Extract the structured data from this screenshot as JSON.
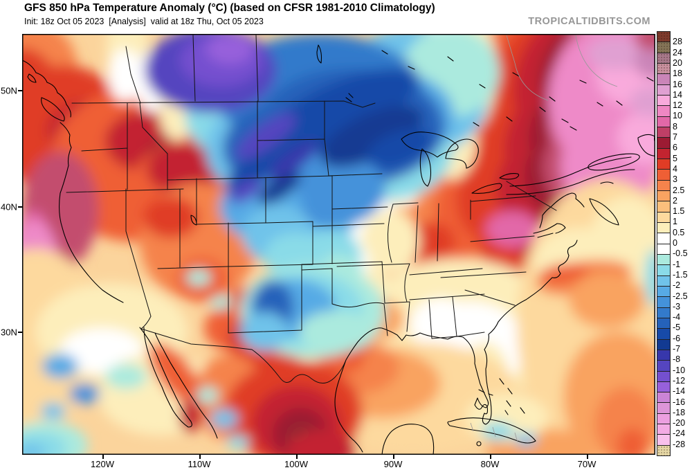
{
  "header": {
    "title": "GFS 850 hPa Temperature Anomaly (°C) (based on CFSR 1981-2010 Climatology)",
    "init_valid_line": "Init: 18z Oct 05 2023  [Analysis]  valid at 18z Thu, Oct 05 2023",
    "init": "18z Oct 05 2023",
    "mode": "[Analysis]",
    "valid": "18z Thu, Oct 05 2023",
    "watermark": "TROPICALTIDBITS.COM"
  },
  "axes": {
    "lat_labels": [
      "50N",
      "40N",
      "30N"
    ],
    "lon_labels": [
      "120W",
      "110W",
      "100W",
      "90W",
      "80W",
      "70W"
    ]
  },
  "colorbar": {
    "unit": "°C",
    "labels": [
      "28",
      "24",
      "20",
      "18",
      "16",
      "14",
      "12",
      "10",
      "8",
      "7",
      "6",
      "5",
      "4",
      "3",
      "2.5",
      "2",
      "1.5",
      "1",
      "0.5",
      "0",
      "-0.5",
      "-1",
      "-1.5",
      "-2",
      "-2.5",
      "-3",
      "-4",
      "-5",
      "-6",
      "-7",
      "-8",
      "-10",
      "-12",
      "-14",
      "-16",
      "-18",
      "-20",
      "-24",
      "-28"
    ],
    "cells": [
      {
        "range": "> 28",
        "color": "#7e3a2c",
        "speckle": true
      },
      {
        "range": "24 to 28",
        "color": "#857457",
        "speckle": true
      },
      {
        "range": "20 to 24",
        "color": "#a8798b",
        "speckle": true
      },
      {
        "range": "18 to 20",
        "color": "#c9919f",
        "speckle": true
      },
      {
        "range": "16 to 18",
        "color": "#ca85b8",
        "speckle": false
      },
      {
        "range": "14 to 16",
        "color": "#e0a0d2",
        "speckle": false
      },
      {
        "range": "12 to 14",
        "color": "#f9aadc",
        "speckle": false
      },
      {
        "range": "10 to 12",
        "color": "#ef87c3",
        "speckle": false
      },
      {
        "range": "8 to 10",
        "color": "#e268a8",
        "speckle": false
      },
      {
        "range": "7 to 8",
        "color": "#bf3f66",
        "speckle": false
      },
      {
        "range": "6 to 7",
        "color": "#9c1b33",
        "speckle": false
      },
      {
        "range": "5 to 6",
        "color": "#c32430",
        "speckle": false
      },
      {
        "range": "4 to 5",
        "color": "#e03c25",
        "speckle": false
      },
      {
        "range": "3 to 4",
        "color": "#ef5f35",
        "speckle": false
      },
      {
        "range": "2.5 to 3",
        "color": "#f5834c",
        "speckle": false
      },
      {
        "range": "2 to 2.5",
        "color": "#f9a361",
        "speckle": false
      },
      {
        "range": "1.5 to 2",
        "color": "#fbbf7c",
        "speckle": false
      },
      {
        "range": "1 to 1.5",
        "color": "#fdd99e",
        "speckle": false
      },
      {
        "range": "0.5 to 1",
        "color": "#fdeebb",
        "speckle": false
      },
      {
        "range": "0 to 0.5",
        "color": "#ffffff",
        "speckle": false
      },
      {
        "range": "-0.5 to 0",
        "color": "#ffffff",
        "speckle": false
      },
      {
        "range": "-1 to -0.5",
        "color": "#abeade",
        "speckle": false
      },
      {
        "range": "-1.5 to -1",
        "color": "#8adbe8",
        "speckle": false
      },
      {
        "range": "-2 to -1.5",
        "color": "#70c3ea",
        "speckle": false
      },
      {
        "range": "-2.5 to -2",
        "color": "#57aae5",
        "speckle": false
      },
      {
        "range": "-3 to -2.5",
        "color": "#4492da",
        "speckle": false
      },
      {
        "range": "-4 to -3",
        "color": "#337acb",
        "speckle": false
      },
      {
        "range": "-5 to -4",
        "color": "#2562ba",
        "speckle": false
      },
      {
        "range": "-6 to -5",
        "color": "#174aa8",
        "speckle": false
      },
      {
        "range": "-7 to -6",
        "color": "#123a92",
        "speckle": false
      },
      {
        "range": "-8 to -7",
        "color": "#3737ab",
        "speckle": false
      },
      {
        "range": "-10 to -8",
        "color": "#5545bf",
        "speckle": false
      },
      {
        "range": "-12 to -10",
        "color": "#7450cf",
        "speckle": false
      },
      {
        "range": "-14 to -12",
        "color": "#9760db",
        "speckle": false
      },
      {
        "range": "-16 to -14",
        "color": "#cb84d6",
        "speckle": false
      },
      {
        "range": "-18 to -16",
        "color": "#dd95d8",
        "speckle": false
      },
      {
        "range": "-20 to -18",
        "color": "#ec9fe0",
        "speckle": false
      },
      {
        "range": "-24 to -20",
        "color": "#f3abe4",
        "speckle": false
      },
      {
        "range": "-28 to -24",
        "color": "#f8c0ec",
        "speckle": false
      },
      {
        "range": "< -28",
        "color": "#e5d7a5",
        "speckle": true
      }
    ]
  },
  "chart_data": {
    "type": "heatmap",
    "title": "GFS 850 hPa Temperature Anomaly (°C) (based on CFSR 1981-2010 Climatology)",
    "model": "GFS",
    "field": "850 hPa temperature anomaly",
    "unit": "°C",
    "climatology": "CFSR 1981-2010",
    "init_time": "18z Oct 05 2023",
    "valid_time": "18z Thu, Oct 05 2023",
    "x_ticks": [
      "120W",
      "110W",
      "100W",
      "90W",
      "80W",
      "70W"
    ],
    "y_ticks": [
      "50N",
      "40N",
      "30N"
    ],
    "scale_values": [
      28,
      24,
      20,
      18,
      16,
      14,
      12,
      10,
      8,
      7,
      6,
      5,
      4,
      3,
      2.5,
      2,
      1.5,
      1,
      0.5,
      0,
      -0.5,
      -1,
      -1.5,
      -2,
      -2.5,
      -3,
      -4,
      -5,
      -6,
      -7,
      -8,
      -10,
      -12,
      -14,
      -16,
      -18,
      -20,
      -24,
      -28
    ],
    "anomaly_regions": [
      {
        "region": "Pacific Northwest / BC coast",
        "approx_anomaly_c": "+5 to +10"
      },
      {
        "region": "Alberta / Saskatchewan prairies",
        "approx_anomaly_c": "-8 to -14"
      },
      {
        "region": "Montana east / Dakotas / Minnesota",
        "approx_anomaly_c": "-4 to -7"
      },
      {
        "region": "Nebraska / Colorado tongue",
        "approx_anomaly_c": "-1 to -4"
      },
      {
        "region": "West Texas / New Mexico",
        "approx_anomaly_c": "-2 to -5"
      },
      {
        "region": "Quebec / eastern Canada",
        "approx_anomaly_c": "+10 to +18"
      },
      {
        "region": "Great Lakes / Northeast US",
        "approx_anomaly_c": "+4 to +8"
      },
      {
        "region": "Southeast US / Florida",
        "approx_anomaly_c": "0 to +1"
      },
      {
        "region": "Gulf of Mexico",
        "approx_anomaly_c": "+1 to +3"
      },
      {
        "region": "Northern Mexico interior",
        "approx_anomaly_c": "+4 to +7"
      },
      {
        "region": "Pacific off California",
        "approx_anomaly_c": "0 to -3 spots"
      },
      {
        "region": "Western Atlantic",
        "approx_anomaly_c": "+1 to +4"
      }
    ]
  }
}
